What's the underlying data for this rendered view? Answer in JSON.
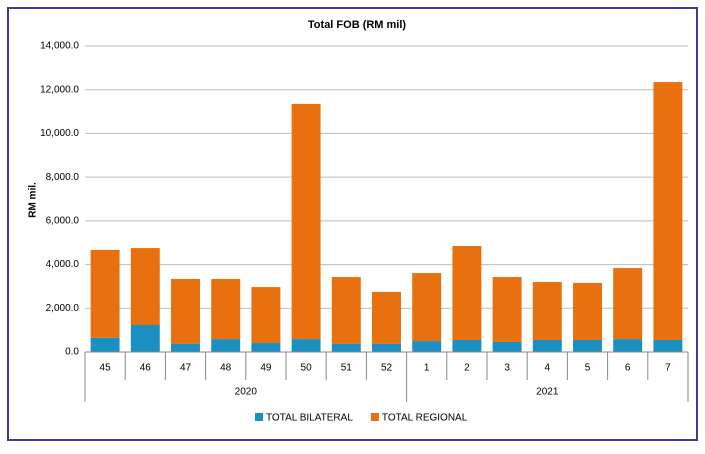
{
  "chart_data": {
    "type": "stacked_bar",
    "title": "Total FOB (RM mil)",
    "y_label": "RM mil.",
    "categories": [
      "45",
      "46",
      "47",
      "48",
      "49",
      "50",
      "51",
      "52",
      "1",
      "2",
      "3",
      "4",
      "5",
      "6",
      "7"
    ],
    "groups": [
      "2020",
      "2020",
      "2020",
      "2020",
      "2020",
      "2020",
      "2020",
      "2020",
      "2021",
      "2021",
      "2021",
      "2021",
      "2021",
      "2021",
      "2021"
    ],
    "series": [
      {
        "name": "TOTAL BILATERAL",
        "color": "#1a8fc2",
        "values": [
          650,
          1235,
          370,
          590,
          410,
          590,
          370,
          370,
          500,
          550,
          460,
          550,
          550,
          590,
          550
        ]
      },
      {
        "name": "TOTAL REGIONAL",
        "color": "#e8700f",
        "values": [
          4020,
          3520,
          2970,
          2750,
          2560,
          10760,
          3060,
          2380,
          3110,
          4300,
          2970,
          2650,
          2610,
          3250,
          11800
        ]
      }
    ],
    "ylim": [
      0,
      14000
    ],
    "yticks": [
      {
        "value": 0,
        "label": "0.0"
      },
      {
        "value": 2000,
        "label": "2,000.0"
      },
      {
        "value": 4000,
        "label": "4,000.0"
      },
      {
        "value": 6000,
        "label": "6,000.0"
      },
      {
        "value": 8000,
        "label": "8,000.0"
      },
      {
        "value": 10000,
        "label": "10,000.0"
      },
      {
        "value": 12000,
        "label": "12,000.0"
      },
      {
        "value": 14000,
        "label": "14,000.0"
      }
    ],
    "grid": true,
    "legend": "bottom"
  }
}
